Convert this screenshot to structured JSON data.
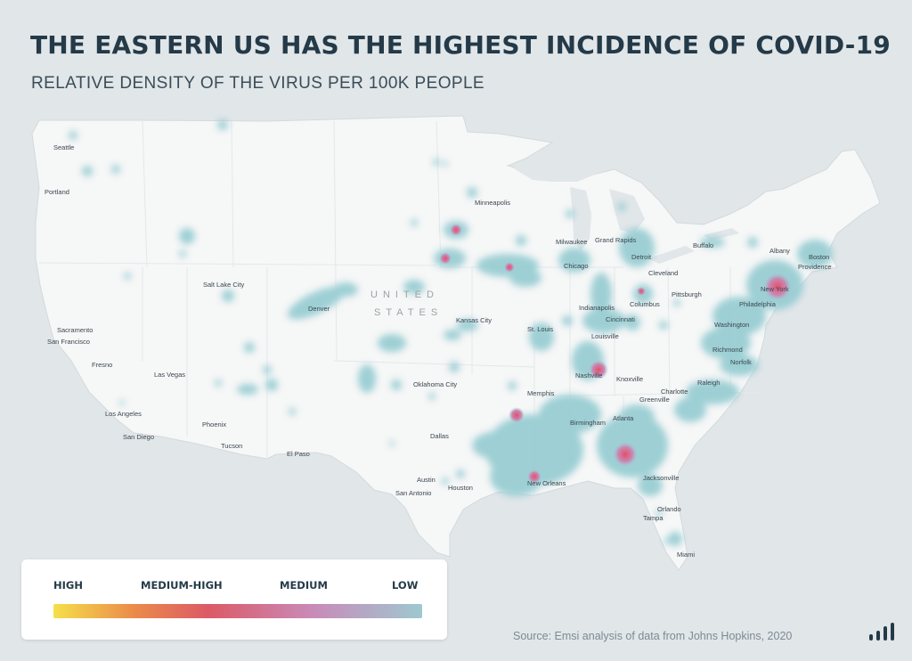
{
  "title": "THE EASTERN US HAS THE HIGHEST INCIDENCE OF COVID-19",
  "subtitle": "RELATIVE DENSITY OF THE VIRUS PER 100K PEOPLE",
  "map": {
    "country_label_line1": "UNITED",
    "country_label_line2": "STATES",
    "cities": [
      "Seattle",
      "Portland",
      "Sacramento",
      "San Francisco",
      "Fresno",
      "Los Angeles",
      "San Diego",
      "Las Vegas",
      "Salt Lake City",
      "Phoenix",
      "Tucson",
      "El Paso",
      "Denver",
      "Minneapolis",
      "Kansas City",
      "Oklahoma City",
      "Dallas",
      "Austin",
      "San Antonio",
      "Houston",
      "New Orleans",
      "Memphis",
      "St. Louis",
      "Nashville",
      "Birmingham",
      "Atlanta",
      "Chicago",
      "Milwaukee",
      "Grand Rapids",
      "Detroit",
      "Indianapolis",
      "Cincinnati",
      "Louisville",
      "Columbus",
      "Cleveland",
      "Pittsburgh",
      "Buffalo",
      "Albany",
      "Boston",
      "Providence",
      "New York",
      "Philadelphia",
      "Washington",
      "Richmond",
      "Norfolk",
      "Knoxville",
      "Charlotte",
      "Greenville",
      "Raleigh",
      "Jacksonville",
      "Orlando",
      "Tampa",
      "Miami"
    ]
  },
  "legend": {
    "high": "HIGH",
    "medium_high": "MEDIUM-HIGH",
    "medium": "MEDIUM",
    "low": "LOW",
    "colors": [
      "#f5e04a",
      "#eb8a4a",
      "#dc5a66",
      "#c98ab8",
      "#9ec8d0"
    ]
  },
  "source": "Source: Emsi analysis of data from Johns Hopkins, 2020",
  "logo_icon": "bar-chart-logo-icon"
}
